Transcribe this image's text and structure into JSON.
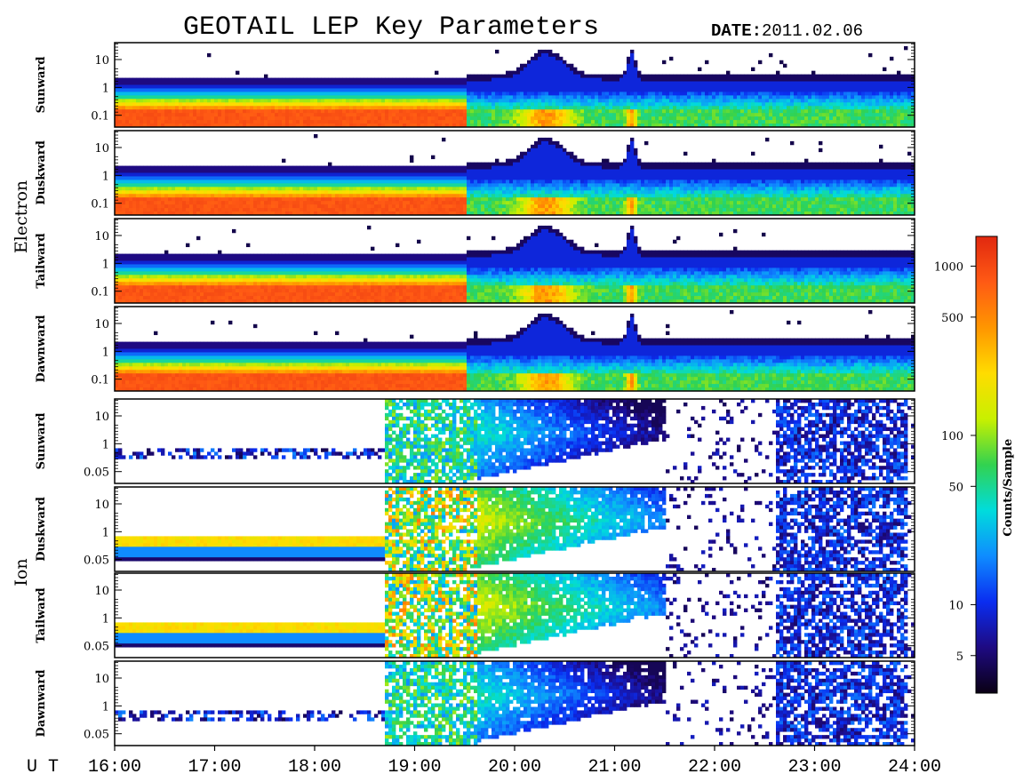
{
  "title": "GEOTAIL LEP Key Parameters",
  "date_label": "DATE:",
  "date_value": "2011.02.06",
  "colors": {
    "background": "#ffffff",
    "frame": "#000000",
    "no_data": "#ffffff"
  },
  "chart_data": {
    "type": "heatmap",
    "x_axis": {
      "label": "U T",
      "range": [
        "16:00",
        "24:00"
      ],
      "ticks": [
        "16:00",
        "17:00",
        "18:00",
        "19:00",
        "20:00",
        "21:00",
        "22:00",
        "23:00",
        "24:00"
      ]
    },
    "groups": [
      {
        "species": "Electron",
        "y_ticks": [
          "10",
          "1",
          "0.1"
        ],
        "panels": [
          {
            "direction": "Sunward"
          },
          {
            "direction": "Duskward"
          },
          {
            "direction": "Tailward"
          },
          {
            "direction": "Dawnward"
          }
        ]
      },
      {
        "species": "Ion",
        "y_ticks": [
          "10",
          "1",
          "0.05"
        ],
        "panels": [
          {
            "direction": "Sunward"
          },
          {
            "direction": "Duskward"
          },
          {
            "direction": "Tailward"
          },
          {
            "direction": "Dawnward"
          }
        ]
      }
    ],
    "colorbar": {
      "title": "Counts/Sample",
      "scale": "log",
      "range": [
        3,
        1500
      ],
      "ticks": [
        {
          "label": "5",
          "value": 5
        },
        {
          "label": "10",
          "value": 10
        },
        {
          "label": "50",
          "value": 50
        },
        {
          "label": "100",
          "value": 100
        },
        {
          "label": "500",
          "value": 500
        },
        {
          "label": "1000",
          "value": 1000
        }
      ],
      "colors": [
        "#0a0014",
        "#1e0a82",
        "#0a2df0",
        "#0f8cff",
        "#00dcdc",
        "#32d250",
        "#c8f000",
        "#ffdc00",
        "#ff9600",
        "#ff5a14",
        "#e1280f"
      ]
    }
  }
}
